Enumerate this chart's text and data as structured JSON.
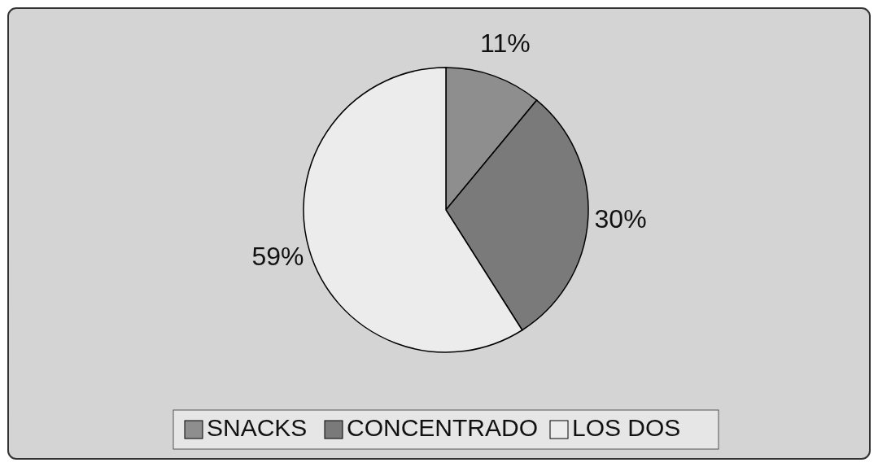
{
  "chart_data": {
    "type": "pie",
    "categories": [
      "SNACKS",
      "CONCENTRADO",
      "LOS DOS"
    ],
    "values": [
      11,
      30,
      59
    ],
    "colors": [
      "#8e8e8e",
      "#7a7a7a",
      "#ececec"
    ],
    "value_labels": [
      "11%",
      "30%",
      "59%"
    ],
    "legend": "bottom"
  }
}
